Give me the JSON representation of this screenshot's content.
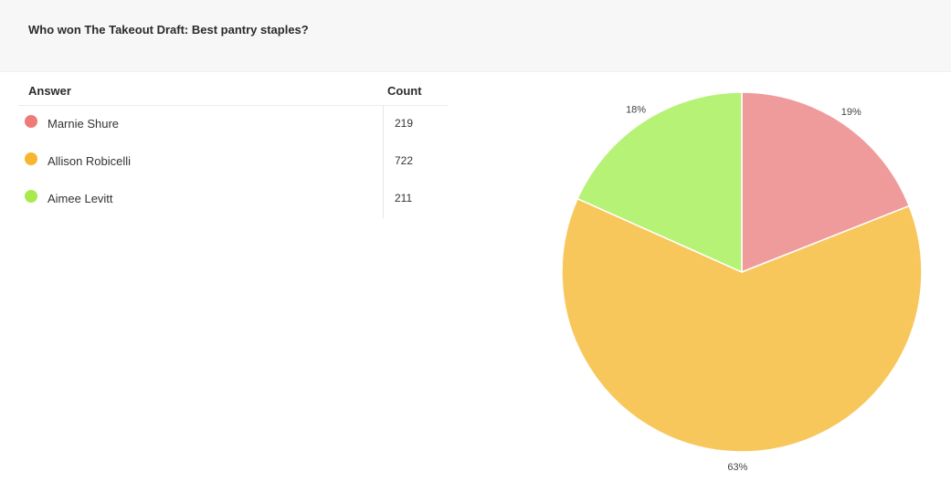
{
  "poll": {
    "question": "Who won The Takeout Draft: Best pantry staples?"
  },
  "table": {
    "header_answer": "Answer",
    "header_count": "Count",
    "rows": [
      {
        "answer": "Marnie Shure",
        "count": "219",
        "color": "#ef7b78"
      },
      {
        "answer": "Allison Robicelli",
        "count": "722",
        "color": "#f8b52f"
      },
      {
        "answer": "Aimee Levitt",
        "count": "211",
        "color": "#a8ea4e"
      }
    ]
  },
  "chart_data": {
    "type": "pie",
    "title": "Who won The Takeout Draft: Best pantry staples?",
    "categories": [
      "Marnie Shure",
      "Allison Robicelli",
      "Aimee Levitt"
    ],
    "values": [
      219,
      722,
      211
    ],
    "percent_labels": [
      "19%",
      "63%",
      "18%"
    ],
    "colors": [
      "#f09b9b",
      "#f8c75c",
      "#b6f275"
    ]
  }
}
